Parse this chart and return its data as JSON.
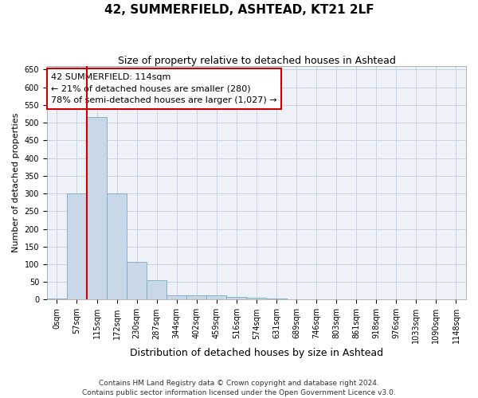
{
  "title1": "42, SUMMERFIELD, ASHTEAD, KT21 2LF",
  "title2": "Size of property relative to detached houses in Ashtead",
  "xlabel": "Distribution of detached houses by size in Ashtead",
  "ylabel": "Number of detached properties",
  "bin_labels": [
    "0sqm",
    "57sqm",
    "115sqm",
    "172sqm",
    "230sqm",
    "287sqm",
    "344sqm",
    "402sqm",
    "459sqm",
    "516sqm",
    "574sqm",
    "631sqm",
    "689sqm",
    "746sqm",
    "803sqm",
    "861sqm",
    "918sqm",
    "976sqm",
    "1033sqm",
    "1090sqm",
    "1148sqm"
  ],
  "bar_values": [
    3,
    300,
    515,
    300,
    107,
    54,
    12,
    13,
    12,
    8,
    5,
    3,
    1,
    0,
    1,
    0,
    0,
    1,
    0,
    0,
    1
  ],
  "bar_color": "#c8d8e8",
  "bar_edge_color": "#7aaabf",
  "vline_color": "#cc0000",
  "annotation_text": "42 SUMMERFIELD: 114sqm\n← 21% of detached houses are smaller (280)\n78% of semi-detached houses are larger (1,027) →",
  "annotation_box_color": "#cc0000",
  "ylim": [
    0,
    660
  ],
  "yticks": [
    0,
    50,
    100,
    150,
    200,
    250,
    300,
    350,
    400,
    450,
    500,
    550,
    600,
    650
  ],
  "grid_color": "#c8d4e4",
  "bg_color": "#eef2f8",
  "footer": "Contains HM Land Registry data © Crown copyright and database right 2024.\nContains public sector information licensed under the Open Government Licence v3.0.",
  "title1_fontsize": 11,
  "title2_fontsize": 9,
  "xlabel_fontsize": 9,
  "ylabel_fontsize": 8,
  "tick_fontsize": 7,
  "annotation_fontsize": 8,
  "footer_fontsize": 6.5
}
